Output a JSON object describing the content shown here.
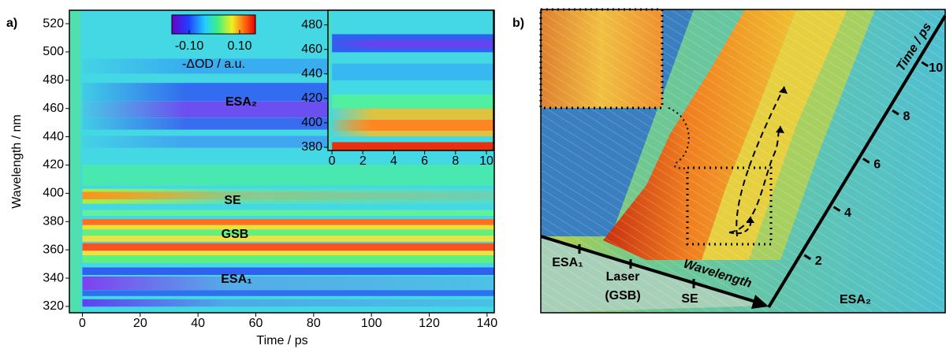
{
  "chart_data": [
    {
      "type": "heatmap",
      "panel_label": "a)",
      "x_label": "Time / ps",
      "y_label": "Wavelength / nm",
      "xlim": [
        -4.5,
        142.5
      ],
      "ylim": [
        315.5,
        529.5
      ],
      "xticks": [
        0,
        20,
        40,
        60,
        80,
        100,
        120,
        140
      ],
      "yticks": [
        320,
        340,
        360,
        380,
        400,
        420,
        440,
        460,
        480,
        500,
        520
      ],
      "annotations": [
        "ESA₂",
        "SE",
        "GSB",
        "ESA₁"
      ],
      "colorbar": {
        "label": "-ΔOD / a.u.",
        "lim": [
          -0.169,
          0.1625
        ],
        "ticks": [
          {
            "value": -0.1,
            "label": "-0.10"
          },
          {
            "value": 0.1,
            "label": "0.10"
          }
        ]
      }
    },
    {
      "type": "heatmap",
      "xlim": [
        -0.26,
        10.46
      ],
      "ylim": [
        377.4,
        492
      ],
      "xticks": [
        0,
        2,
        4,
        6,
        8,
        10
      ],
      "yticks": [
        380,
        400,
        420,
        440,
        460,
        480
      ]
    },
    {
      "type": "surface",
      "panel_label": "b)",
      "x_label": "Wavelength",
      "y_label": "Time / ps",
      "categories": [
        "ESA₁",
        "Laser (GSB)",
        "SE"
      ],
      "annotations": [
        "ESA₂"
      ],
      "ylim": [
        0,
        11.6
      ],
      "yticks": [
        2,
        4,
        6,
        8,
        10
      ]
    }
  ]
}
